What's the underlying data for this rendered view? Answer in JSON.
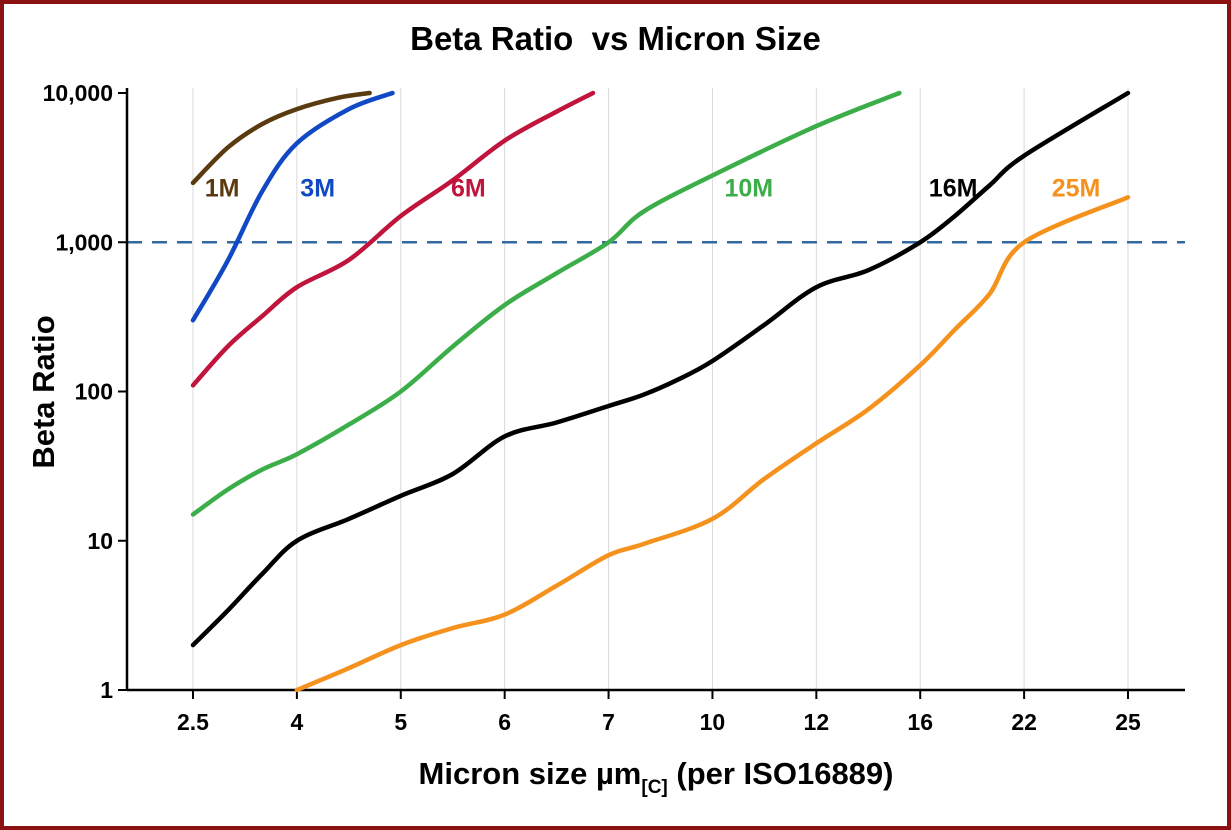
{
  "page": {
    "background": "#ffffff",
    "border_color": "#8b1212"
  },
  "chart_data": {
    "type": "line",
    "title": "Beta Ratio  vs Micron Size",
    "ylabel": "Beta Ratio",
    "xlabel": {
      "main": "Micron size µm",
      "sub": "[C]",
      "rest": " (per ISO16889)"
    },
    "x_scale": "categorical",
    "x_categories": [
      2.5,
      4,
      5,
      6,
      7,
      10,
      12,
      16,
      22,
      25
    ],
    "x_tick_labels": [
      "2.5",
      "4",
      "5",
      "6",
      "7",
      "10",
      "12",
      "16",
      "22",
      "25"
    ],
    "y_scale": "log10",
    "ylim": [
      1,
      10000
    ],
    "y_ticks": [
      1,
      10,
      100,
      1000,
      10000
    ],
    "y_tick_labels": [
      "1",
      "10",
      "100",
      "1,000",
      "10,000"
    ],
    "grid": {
      "vertical": true,
      "horizontal": false,
      "color": "#d9d9d9"
    },
    "reference_line": {
      "y": 1000,
      "color": "#34699f",
      "style": "dashed"
    },
    "axis_color": "#000000",
    "series": [
      {
        "name": "1M",
        "color": "#5a3a0f",
        "label_pos": {
          "x": 2.92,
          "y": 2300
        },
        "points": [
          [
            2.5,
            2500
          ],
          [
            3,
            4300
          ],
          [
            3.5,
            6200
          ],
          [
            4,
            7800
          ],
          [
            4.4,
            9300
          ],
          [
            4.7,
            10000
          ]
        ]
      },
      {
        "name": "3M",
        "color": "#1149c4",
        "label_pos": {
          "x": 4.2,
          "y": 2300
        },
        "points": [
          [
            2.5,
            300
          ],
          [
            3,
            750
          ],
          [
            3.5,
            2200
          ],
          [
            4,
            4600
          ],
          [
            4.5,
            7800
          ],
          [
            4.92,
            10000
          ]
        ]
      },
      {
        "name": "6M",
        "color": "#c0143c",
        "label_pos": {
          "x": 5.65,
          "y": 2300
        },
        "points": [
          [
            2.5,
            110
          ],
          [
            3,
            200
          ],
          [
            3.5,
            320
          ],
          [
            4,
            500
          ],
          [
            4.5,
            760
          ],
          [
            5,
            1500
          ],
          [
            5.5,
            2600
          ],
          [
            6,
            4800
          ],
          [
            6.5,
            7500
          ],
          [
            6.85,
            10000
          ]
        ]
      },
      {
        "name": "10M",
        "color": "#3cae49",
        "label_pos": {
          "x": 10.7,
          "y": 2300
        },
        "points": [
          [
            2.5,
            15
          ],
          [
            3,
            22
          ],
          [
            3.5,
            30
          ],
          [
            4,
            38
          ],
          [
            4.5,
            60
          ],
          [
            5,
            100
          ],
          [
            5.5,
            200
          ],
          [
            6,
            380
          ],
          [
            6.5,
            620
          ],
          [
            7,
            1000
          ],
          [
            8,
            1600
          ],
          [
            10,
            2800
          ],
          [
            12,
            6000
          ],
          [
            15.2,
            10000
          ]
        ]
      },
      {
        "name": "16M",
        "color": "#000000",
        "label_pos": {
          "x": 17.9,
          "y": 2300
        },
        "points": [
          [
            2.5,
            2
          ],
          [
            3,
            3.4
          ],
          [
            3.5,
            6
          ],
          [
            4,
            10
          ],
          [
            4.5,
            14
          ],
          [
            5,
            20
          ],
          [
            5.5,
            28
          ],
          [
            6,
            50
          ],
          [
            6.5,
            62
          ],
          [
            7,
            80
          ],
          [
            8,
            95
          ],
          [
            9,
            120
          ],
          [
            10,
            160
          ],
          [
            11,
            280
          ],
          [
            12,
            500
          ],
          [
            14,
            650
          ],
          [
            16,
            1000
          ],
          [
            18,
            1500
          ],
          [
            20,
            2400
          ],
          [
            22,
            3800
          ],
          [
            25,
            10000
          ]
        ]
      },
      {
        "name": "25M",
        "color": "#f5921e",
        "label_pos": {
          "x": 23.5,
          "y": 2300
        },
        "points": [
          [
            4,
            1
          ],
          [
            4.5,
            1.4
          ],
          [
            5,
            2
          ],
          [
            5.5,
            2.6
          ],
          [
            6,
            3.2
          ],
          [
            6.5,
            5
          ],
          [
            7,
            8
          ],
          [
            8,
            9.5
          ],
          [
            10,
            14
          ],
          [
            11,
            26
          ],
          [
            12,
            45
          ],
          [
            14,
            76
          ],
          [
            16,
            150
          ],
          [
            18,
            260
          ],
          [
            20,
            450
          ],
          [
            22,
            1000
          ],
          [
            25,
            2000
          ]
        ]
      }
    ]
  }
}
